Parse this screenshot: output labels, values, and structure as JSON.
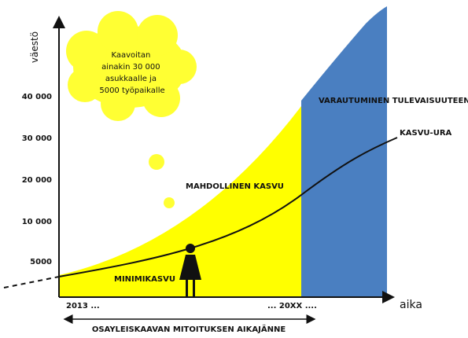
{
  "y_axis": {
    "label": "väestö",
    "ticks": [
      "40 000",
      "30 000",
      "20 000",
      "10 000",
      "5000"
    ]
  },
  "x_axis": {
    "label": "aika",
    "start": "2013 ...",
    "end": "... 20XX ...."
  },
  "regions": {
    "yellow": "MAHDOLLINEN KASVU",
    "bottom": "MINIMIKASVU",
    "blue": "VARAUTUMINEN TULEVAISUUTEEN"
  },
  "curve_label": "KASVU-URA",
  "thought_cloud": {
    "lines": [
      "Kaavoitan",
      "ainakin 30 000",
      "asukkaalle ja",
      "5000 työpaikalle"
    ]
  },
  "timespan": "OSAYLEISKAAVAN MITOITUKSEN AIKAJÄNNE"
}
